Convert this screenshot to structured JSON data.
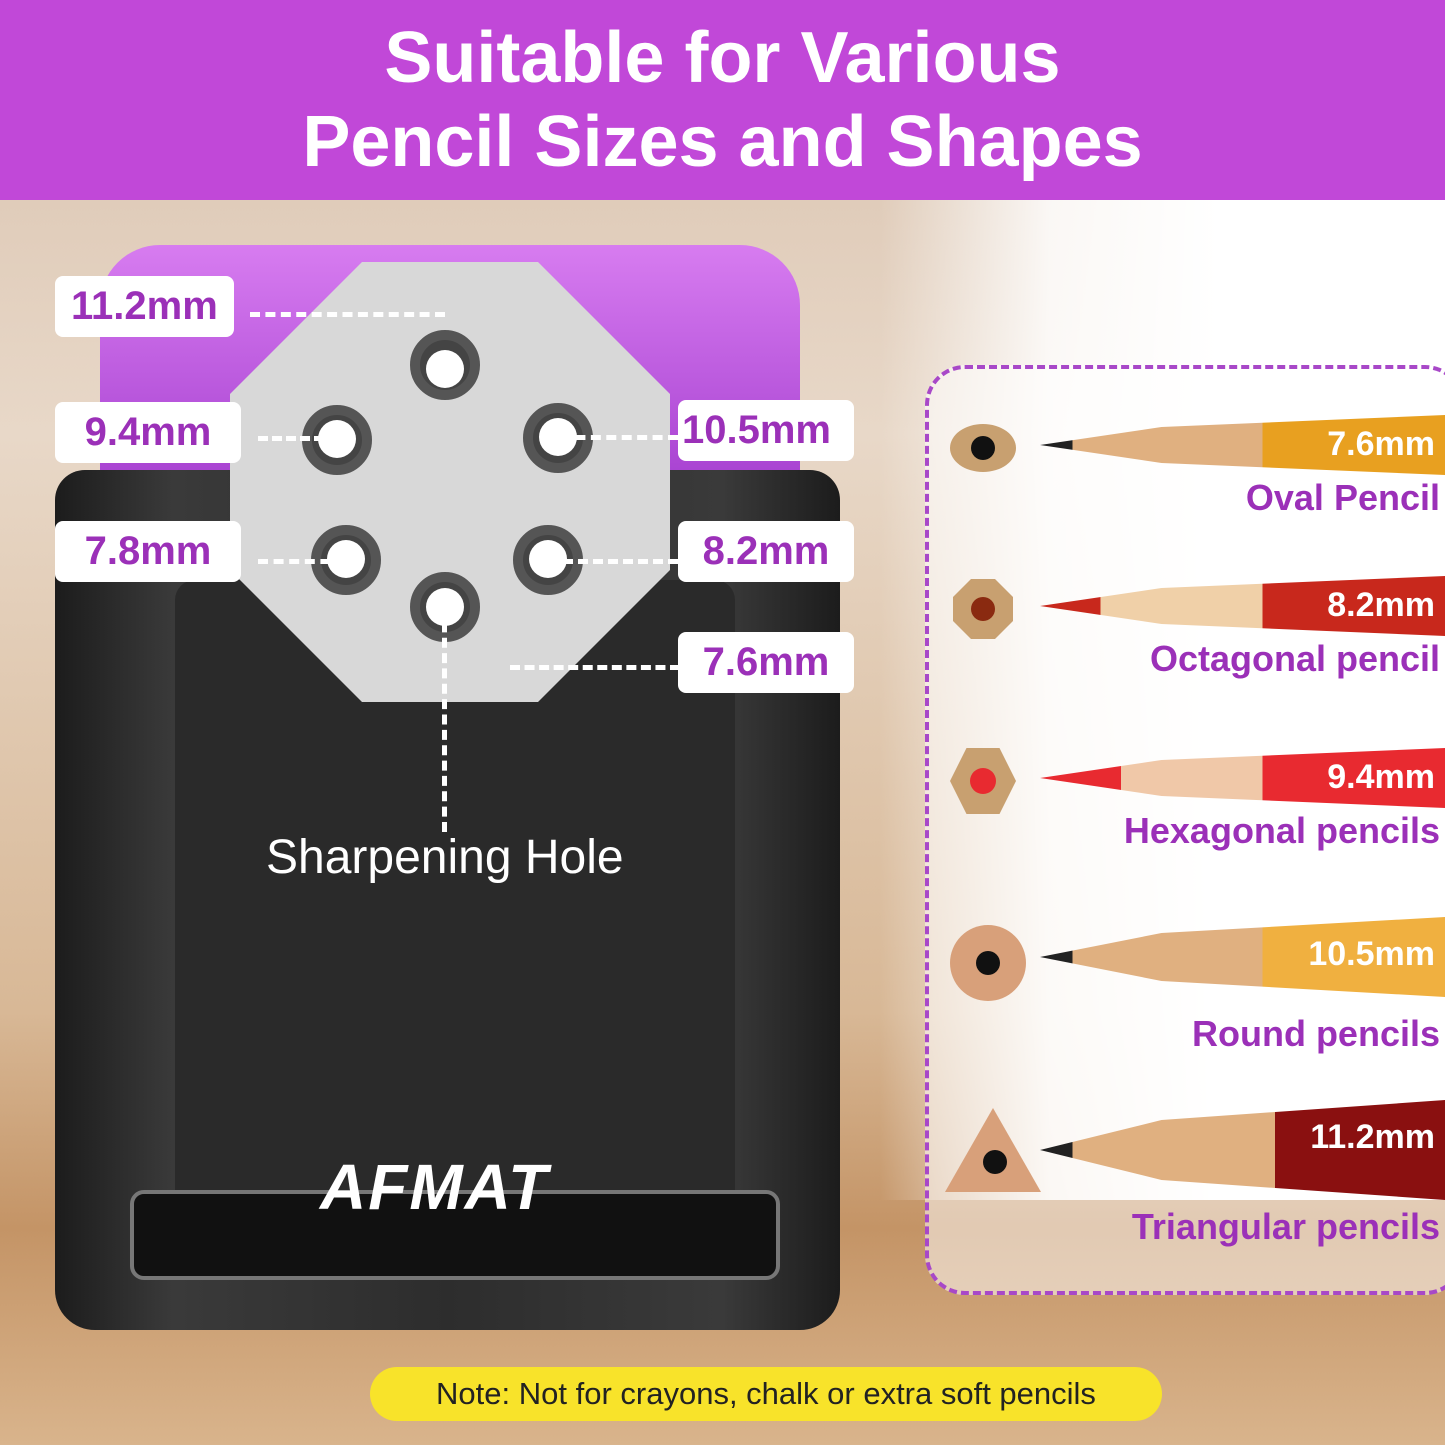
{
  "header": {
    "line1": "Suitable for Various",
    "line2": "Pencil Sizes and Shapes"
  },
  "holes": {
    "h1": "11.2mm",
    "h2": "9.4mm",
    "h3": "10.5mm",
    "h4": "7.8mm",
    "h5": "8.2mm",
    "h6": "7.6mm"
  },
  "sharpening_label": "Sharpening Hole",
  "brand": "AFMAT",
  "pencils": [
    {
      "size": "7.6mm",
      "name": "Oval Pencil",
      "shape": "oval",
      "color": "#e8a020"
    },
    {
      "size": "8.2mm",
      "name": "Octagonal pencil",
      "shape": "octagon",
      "color": "#c8281c"
    },
    {
      "size": "9.4mm",
      "name": "Hexagonal pencils",
      "shape": "hexagon",
      "color": "#e82a30"
    },
    {
      "size": "10.5mm",
      "name": "Round pencils",
      "shape": "round",
      "color": "#f0b040"
    },
    {
      "size": "11.2mm",
      "name": "Triangular pencils",
      "shape": "triangle",
      "color": "#8a1010"
    }
  ],
  "note": "Note: Not for crayons, chalk or extra soft pencils"
}
